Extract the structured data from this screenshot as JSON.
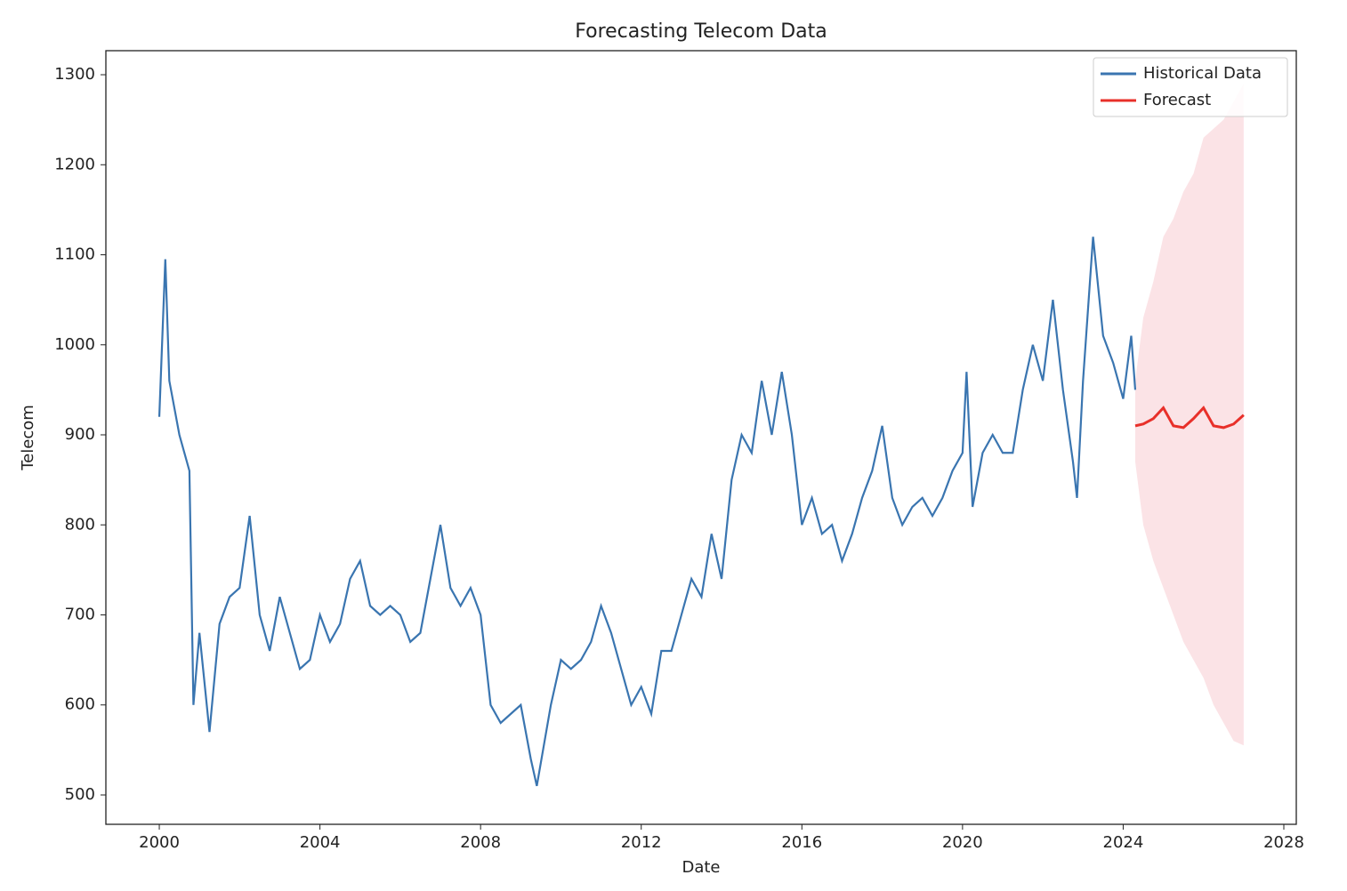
{
  "chart_data": {
    "type": "line",
    "title": "Forecasting Telecom Data",
    "x_label": "Date",
    "y_label": "Telecom",
    "xlim": [
      1998.67,
      2028.31
    ],
    "xticks": [
      2000,
      2004,
      2008,
      2012,
      2016,
      2020,
      2024,
      2028
    ],
    "ylim": [
      467.4,
      1326.7
    ],
    "yticks": [
      500,
      600,
      700,
      800,
      900,
      1000,
      1100,
      1200,
      1300
    ],
    "legend": "upper right",
    "series": [
      {
        "name": "Historical Data",
        "color": "#3a75b0",
        "x": [
          2000,
          2000.15,
          2000.25,
          2000.5,
          2000.75,
          2000.85,
          2001,
          2001.25,
          2001.5,
          2001.75,
          2002,
          2002.25,
          2002.5,
          2002.75,
          2003,
          2003.25,
          2003.5,
          2003.75,
          2004,
          2004.25,
          2004.5,
          2004.75,
          2005,
          2005.25,
          2005.5,
          2005.75,
          2006,
          2006.25,
          2006.5,
          2006.75,
          2007,
          2007.25,
          2007.5,
          2007.75,
          2008,
          2008.25,
          2008.5,
          2008.75,
          2009,
          2009.25,
          2009.4,
          2009.75,
          2010,
          2010.25,
          2010.5,
          2010.75,
          2011,
          2011.25,
          2011.5,
          2011.75,
          2012,
          2012.25,
          2012.5,
          2012.75,
          2013,
          2013.25,
          2013.5,
          2013.75,
          2014,
          2014.25,
          2014.5,
          2014.75,
          2015,
          2015.25,
          2015.5,
          2015.75,
          2016,
          2016.25,
          2016.5,
          2016.75,
          2017,
          2017.25,
          2017.5,
          2017.75,
          2018,
          2018.25,
          2018.5,
          2018.75,
          2019,
          2019.25,
          2019.5,
          2019.75,
          2020,
          2020.1,
          2020.25,
          2020.5,
          2020.75,
          2021,
          2021.25,
          2021.5,
          2021.75,
          2022,
          2022.25,
          2022.5,
          2022.75,
          2022.85,
          2023,
          2023.25,
          2023.5,
          2023.75,
          2024,
          2024.2,
          2024.3
        ],
        "values": [
          920,
          1095,
          960,
          900,
          860,
          600,
          680,
          570,
          690,
          720,
          730,
          810,
          700,
          660,
          720,
          680,
          640,
          650,
          700,
          670,
          690,
          740,
          760,
          710,
          700,
          710,
          700,
          670,
          680,
          740,
          800,
          730,
          710,
          730,
          700,
          600,
          580,
          590,
          600,
          540,
          510,
          600,
          650,
          640,
          650,
          670,
          710,
          680,
          640,
          600,
          620,
          590,
          660,
          660,
          700,
          740,
          720,
          790,
          740,
          850,
          900,
          880,
          960,
          900,
          970,
          900,
          800,
          830,
          790,
          800,
          760,
          790,
          830,
          860,
          910,
          830,
          800,
          820,
          830,
          810,
          830,
          860,
          880,
          970,
          820,
          880,
          900,
          880,
          880,
          950,
          1000,
          960,
          1050,
          950,
          870,
          830,
          960,
          1120,
          1010,
          980,
          940,
          1010,
          950
        ]
      },
      {
        "name": "Forecast",
        "color": "#e8302a",
        "band_color": "#fbe3e6",
        "x": [
          2024.3,
          2024.5,
          2024.75,
          2025,
          2025.25,
          2025.5,
          2025.75,
          2026,
          2026.25,
          2026.5,
          2026.75,
          2027
        ],
        "values": [
          910,
          912,
          918,
          930,
          910,
          908,
          918,
          930,
          910,
          908,
          912,
          922
        ],
        "lower": [
          870,
          800,
          760,
          730,
          700,
          670,
          650,
          630,
          600,
          580,
          560,
          555
        ],
        "upper": [
          960,
          1030,
          1070,
          1120,
          1140,
          1170,
          1190,
          1230,
          1240,
          1250,
          1270,
          1290
        ]
      }
    ]
  }
}
